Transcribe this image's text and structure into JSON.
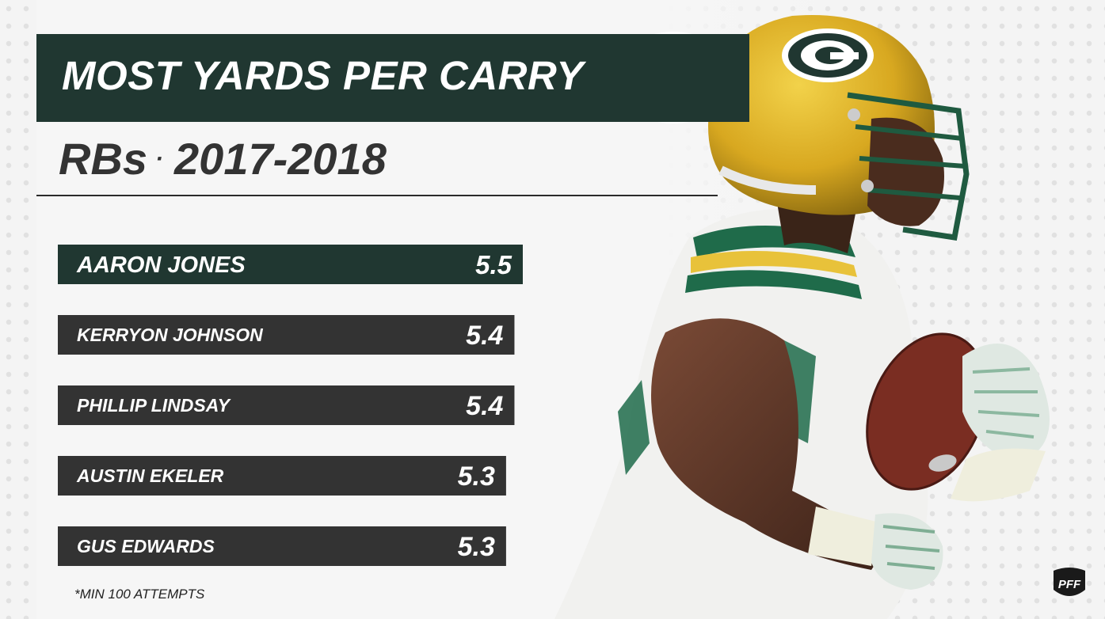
{
  "title": "MOST YARDS PER CARRY",
  "subtitle": {
    "group": "RBs",
    "separator": "·",
    "period": "2017-2018"
  },
  "footnote": "*MIN 100 ATTEMPTS",
  "colors": {
    "brand_green": "#203731",
    "bar_dark": "#333333",
    "gold": "#ffb612",
    "text_light": "#ffffff"
  },
  "icons": {
    "team_logo": "packers-g-logo-icon",
    "brand": "pff-logo-icon"
  },
  "chart_data": {
    "type": "bar",
    "orientation": "horizontal",
    "categories": [
      "AARON JONES",
      "KERRYON JOHNSON",
      "PHILLIP LINDSAY",
      "AUSTIN EKELER",
      "GUS EDWARDS"
    ],
    "values": [
      5.5,
      5.4,
      5.4,
      5.3,
      5.3
    ],
    "value_labels": [
      "5.5",
      "5.4",
      "5.4",
      "5.3",
      "5.3"
    ],
    "highlight_index": 0,
    "title": "MOST YARDS PER CARRY",
    "subtitle": "RBs · 2017-2018",
    "xlabel": "",
    "ylabel": "",
    "grid": false
  }
}
